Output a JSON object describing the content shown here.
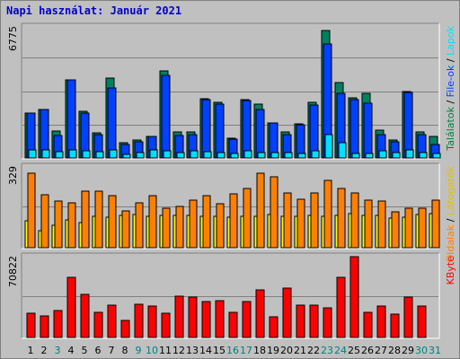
{
  "title": "Napi használat: Január 2021",
  "chart_data": [
    {
      "type": "bar",
      "panel": "top",
      "ymax_label": "6775",
      "ylim": [
        0,
        6775
      ],
      "right_legend": [
        {
          "text": "Találatok",
          "color": "#008040"
        },
        {
          "text": " / ",
          "color": "#000000"
        },
        {
          "text": "File-ok",
          "color": "#0040ff"
        },
        {
          "text": " / ",
          "color": "#000000"
        },
        {
          "text": "Lapok",
          "color": "#00e0ff"
        }
      ],
      "categories": [
        "1",
        "2",
        "3",
        "4",
        "5",
        "6",
        "7",
        "8",
        "9",
        "10",
        "11",
        "12",
        "13",
        "14",
        "15",
        "16",
        "17",
        "18",
        "19",
        "20",
        "21",
        "22",
        "23",
        "24",
        "25",
        "26",
        "27",
        "28",
        "29",
        "30",
        "31"
      ],
      "series": [
        {
          "name": "Találatok",
          "color": "#008060",
          "values": [
            2300,
            2500,
            1400,
            4000,
            2400,
            1300,
            4100,
            800,
            920,
            1120,
            4450,
            1350,
            1350,
            3050,
            2860,
            1000,
            3000,
            2750,
            1800,
            1350,
            1750,
            2870,
            6530,
            3850,
            3100,
            3300,
            1420,
            920,
            3400,
            1320,
            1100
          ]
        },
        {
          "name": "File-ok",
          "color": "#0040ff",
          "values": [
            2300,
            2500,
            1150,
            4000,
            2300,
            1200,
            3600,
            700,
            850,
            1120,
            4250,
            1150,
            1200,
            3000,
            2750,
            950,
            2950,
            2500,
            1800,
            1200,
            1700,
            2730,
            5850,
            3300,
            2980,
            2800,
            1200,
            820,
            3350,
            1220,
            700
          ]
        },
        {
          "name": "Lapok",
          "color": "#00e0ff",
          "values": [
            400,
            420,
            300,
            420,
            350,
            300,
            420,
            200,
            260,
            430,
            350,
            260,
            350,
            320,
            260,
            240,
            350,
            280,
            260,
            260,
            230,
            380,
            1200,
            800,
            230,
            250,
            350,
            260,
            400,
            260,
            250
          ]
        }
      ]
    },
    {
      "type": "bar",
      "panel": "middle",
      "ymax_label": "329",
      "ylim": [
        0,
        329
      ],
      "right_legend": [
        {
          "text": "Oldalak",
          "color": "#ff8000"
        },
        {
          "text": " / ",
          "color": "#000000"
        },
        {
          "text": "Látogatók",
          "color": "#e0c000"
        }
      ],
      "categories": [
        "1",
        "2",
        "3",
        "4",
        "5",
        "6",
        "7",
        "8",
        "9",
        "10",
        "11",
        "12",
        "13",
        "14",
        "15",
        "16",
        "17",
        "18",
        "19",
        "20",
        "21",
        "22",
        "23",
        "24",
        "25",
        "26",
        "27",
        "28",
        "29",
        "30",
        "31"
      ],
      "series": [
        {
          "name": "Oldalak",
          "color": "#ff8000",
          "values": [
            300,
            215,
            188,
            180,
            228,
            228,
            210,
            150,
            180,
            208,
            160,
            168,
            190,
            208,
            178,
            218,
            240,
            300,
            284,
            220,
            195,
            220,
            270,
            240,
            220,
            193,
            188,
            145,
            158,
            160,
            193
          ]
        },
        {
          "name": "Látogatók",
          "color": "#ffff00",
          "values": [
            108,
            70,
            90,
            113,
            100,
            125,
            123,
            130,
            132,
            128,
            130,
            130,
            130,
            128,
            128,
            122,
            128,
            126,
            132,
            128,
            126,
            130,
            128,
            130,
            136,
            130,
            130,
            118,
            123,
            133,
            138
          ]
        }
      ]
    },
    {
      "type": "bar",
      "panel": "bottom",
      "ymax_label": "70822",
      "ylim": [
        0,
        70822
      ],
      "right_legend": [
        {
          "text": "KByte",
          "color": "#ff0000"
        }
      ],
      "categories": [
        "1",
        "2",
        "3",
        "4",
        "5",
        "6",
        "7",
        "8",
        "9",
        "10",
        "11",
        "12",
        "13",
        "14",
        "15",
        "16",
        "17",
        "18",
        "19",
        "20",
        "21",
        "22",
        "23",
        "24",
        "25",
        "26",
        "27",
        "28",
        "29",
        "30",
        "31"
      ],
      "x_label_colors": [
        "#000000",
        "#000000",
        "#008080",
        "#000000",
        "#000000",
        "#000000",
        "#000000",
        "#000000",
        "#008080",
        "#008080",
        "#000000",
        "#000000",
        "#000000",
        "#000000",
        "#000000",
        "#008080",
        "#008080",
        "#000000",
        "#000000",
        "#000000",
        "#000000",
        "#000000",
        "#008080",
        "#008080",
        "#000000",
        "#000000",
        "#000000",
        "#000000",
        "#000000",
        "#008080",
        "#008080"
      ],
      "series": [
        {
          "name": "KByte",
          "color": "#ff0000",
          "values": [
            21000,
            19000,
            23000,
            52000,
            37000,
            22000,
            28000,
            15000,
            29000,
            27000,
            21000,
            36000,
            35000,
            31000,
            32000,
            22000,
            31000,
            41000,
            18000,
            43000,
            28000,
            28000,
            26000,
            52000,
            70000,
            22000,
            27000,
            20000,
            35000,
            27000,
            0
          ]
        }
      ]
    }
  ]
}
